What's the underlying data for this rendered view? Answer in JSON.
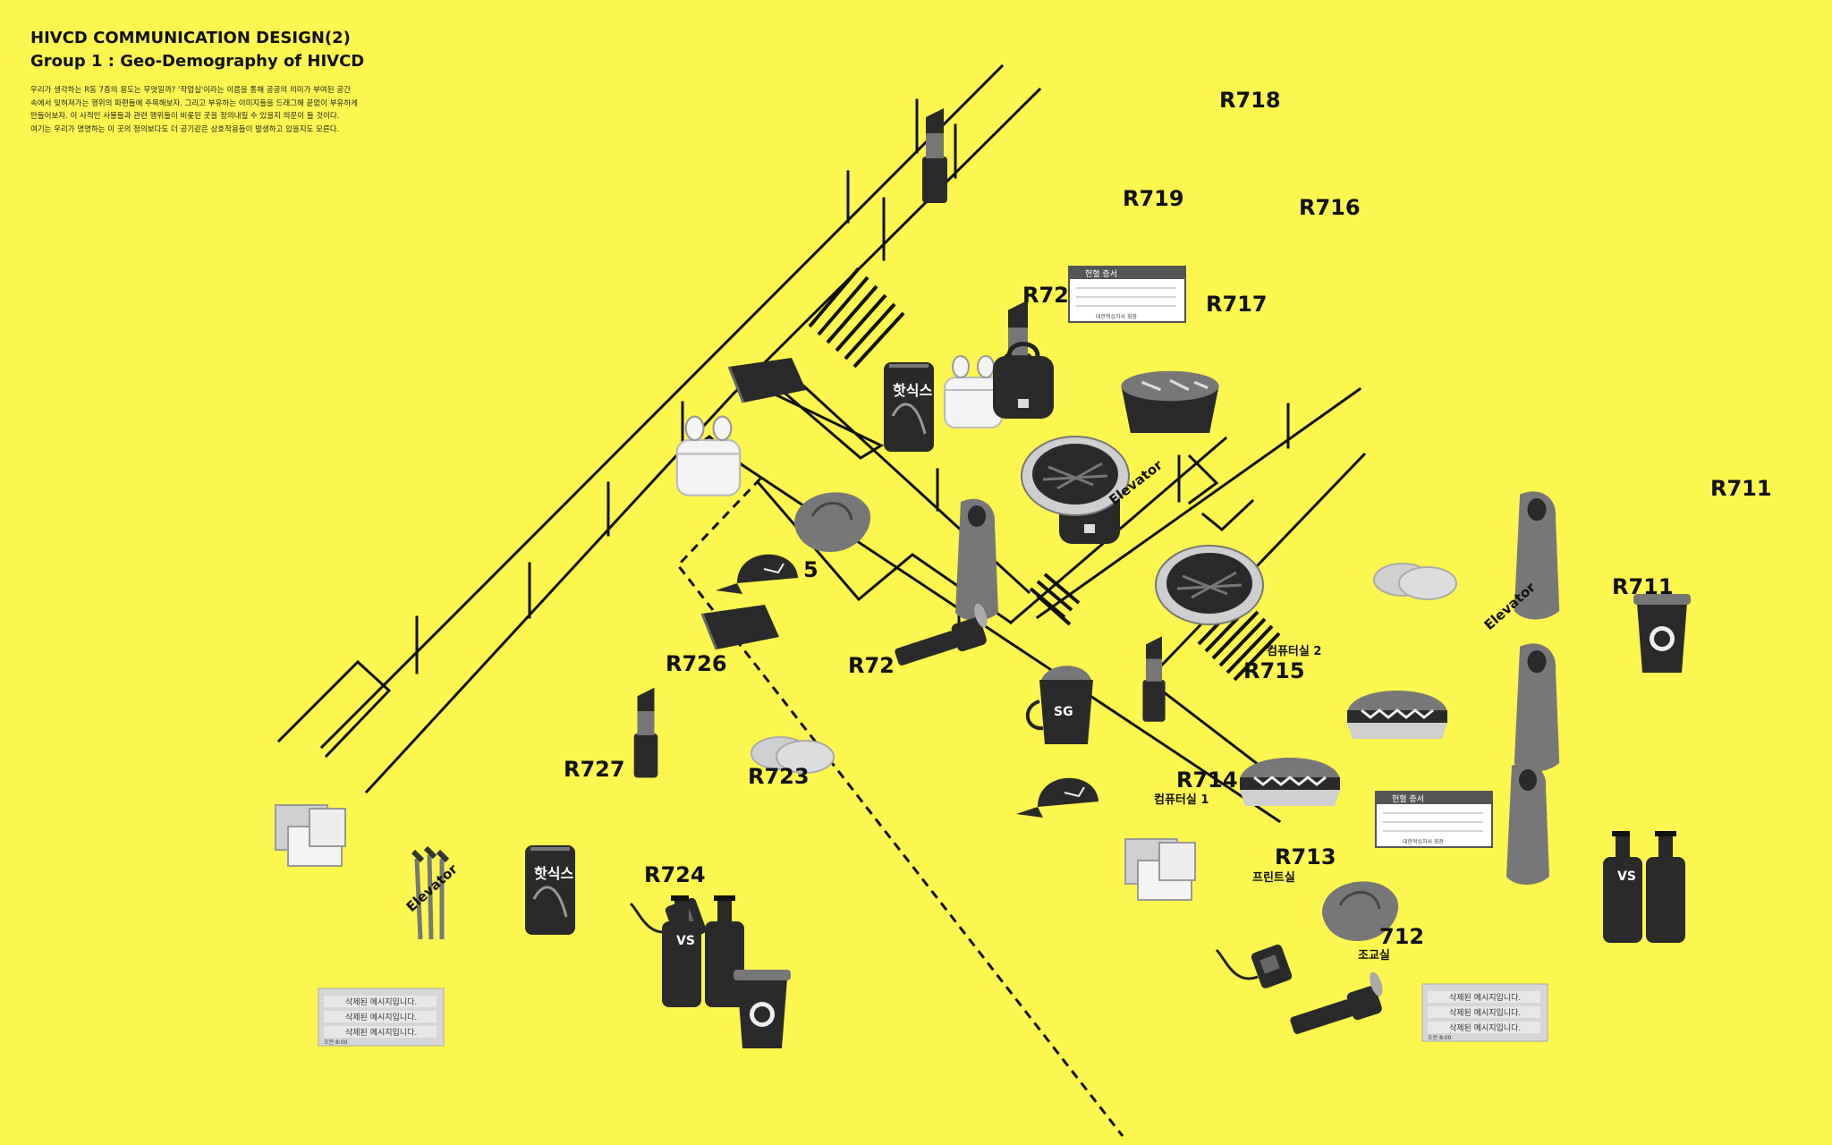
{
  "header": {
    "title1": "HIVCD COMMUNICATION DESIGN(2)",
    "title2": "Group 1 : Geo-Demography of HIVCD",
    "description": [
      "우리가 생각하는 R동 7층의 용도는 무엇일까? '작업실'이라는 이름을 통해 공공의 의미가 부여된 공간",
      "속에서 잊혀져가는 행위의 파편들에 주목해보자. 그리고 부유하는 이미지들을 드래그해 끝없이 부유하게",
      "만들어보자. 이 사적인 사물들과 관련 행위들이 비롯된 곳을 정의내릴 수 있을지 의문이 들 것이다.",
      "여기는 우리가 명명하는 이 곳의 정의보다도 더 공기같은 상호작용들이 발생하고 있을지도 모른다."
    ]
  },
  "rooms": {
    "r718": "R718",
    "r719": "R719",
    "r716": "R716",
    "r717": "R717",
    "r72x": "R72",
    "r725": "5",
    "r726": "R726",
    "r722": "R72",
    "r727": "R727",
    "r723": "R723",
    "r724": "R724",
    "r715": "R715",
    "r714": "R714",
    "r713": "R713",
    "r712": "712",
    "r711a": "R711",
    "r711b": "R711"
  },
  "room_notes": {
    "computer2": "컴퓨터실 2",
    "computer1": "컴퓨터실 1",
    "print": "프린트실",
    "jogyo": "조교실"
  },
  "elevators": {
    "left": "Elevator",
    "center": "Elevator",
    "right": "Elevator"
  },
  "objects": {
    "can_brand": "핫식스",
    "card_title": "헌혈 증서",
    "card_footer": "대한적십자사 회장",
    "cup_text": "SG",
    "bottle_text": "VS"
  },
  "notices": {
    "line": "삭제된 메시지입니다.",
    "footer": "오전 8:00"
  },
  "colors": {
    "background": "#fcf64f",
    "line": "#111111"
  }
}
